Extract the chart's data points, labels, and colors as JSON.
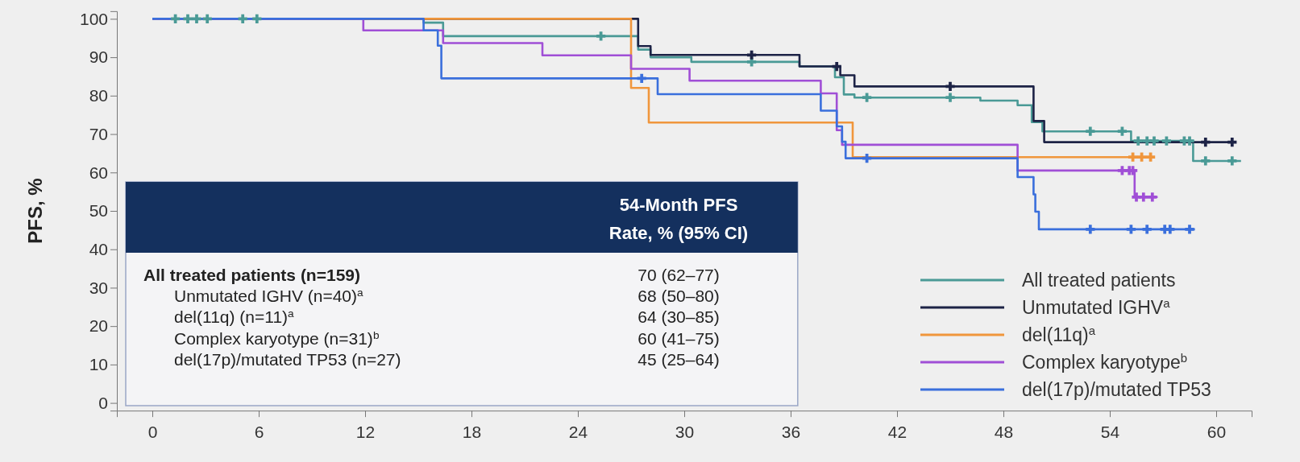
{
  "chart_data": {
    "type": "step",
    "ylabel": "PFS, %",
    "xlim": [
      -2,
      62
    ],
    "ylim": [
      -2,
      102
    ],
    "xticks": [
      0,
      6,
      12,
      18,
      24,
      30,
      36,
      42,
      48,
      54,
      60
    ],
    "yticks": [
      0,
      10,
      20,
      30,
      40,
      50,
      60,
      70,
      80,
      90,
      100
    ],
    "legend": "bottom right",
    "grid": false,
    "line_style": "solid",
    "series": [
      {
        "name": "All treated patients",
        "color": "#4a9a96",
        "x": [
          0,
          15.3,
          16.4,
          27.4,
          28.1,
          30.4,
          36.5,
          38.5,
          39.0,
          39.6,
          46.7,
          48.8,
          49.6,
          50.2,
          55.2,
          58.7,
          61.4
        ],
        "values": [
          100,
          99,
          95.5,
          92,
          90,
          88.8,
          87.6,
          84.8,
          80.3,
          79.5,
          78.7,
          77.5,
          73.1,
          70.7,
          68.2,
          63,
          63
        ]
      },
      {
        "name": "Unmutated IGHV$^{a}$",
        "color": "#1d2346",
        "x": [
          0,
          27.4,
          28.1,
          36.5,
          38.8,
          39.6,
          49.7,
          50.3,
          61.1
        ],
        "values": [
          100,
          92.9,
          90.6,
          87.6,
          85.3,
          82.4,
          73.4,
          67.9,
          67.9
        ]
      },
      {
        "name": "del(11q)$^{a}$",
        "color": "#f0963c",
        "x": [
          0,
          27.0,
          28.0,
          39.5,
          56.5
        ],
        "values": [
          100,
          82,
          73,
          64,
          64
        ]
      },
      {
        "name": "Complex karyotype$^{b}$",
        "color": "#a04fd6",
        "x": [
          0,
          11.9,
          16.4,
          22.0,
          27.0,
          30.3,
          37.7,
          38.6,
          38.9,
          48.8,
          55.4,
          56.7
        ],
        "values": [
          100,
          97,
          93.7,
          90.5,
          87,
          83.9,
          80.6,
          71,
          67.2,
          60.5,
          53.6,
          53.6
        ]
      },
      {
        "name": "del(17p)/mutated TP53",
        "color": "#3a6fdc",
        "x": [
          0,
          15.3,
          16.1,
          16.3,
          28.5,
          37.7,
          38.6,
          38.9,
          39.1,
          48.8,
          49.7,
          49.8,
          50.0,
          58.8
        ],
        "values": [
          100,
          97,
          93,
          84.5,
          80.4,
          76.1,
          72,
          68,
          63.7,
          58.8,
          54.3,
          49.8,
          45.2,
          45.2
        ]
      },
      {
        "type": "scatter",
        "marker": "cross",
        "color": "#4a9a96",
        "x": [
          1.3,
          2.0,
          2.5,
          3.1,
          5.1,
          5.9,
          25.3,
          33.8,
          40.3,
          45.0,
          52.9,
          54.7,
          55.6,
          56.1,
          56.5,
          57.2,
          58.2,
          58.5,
          59.4,
          60.9
        ],
        "values": [
          100,
          100,
          100,
          100,
          100,
          100,
          95.5,
          88.8,
          79.5,
          79.5,
          70.7,
          70.7,
          68.2,
          68.2,
          68.2,
          68.2,
          68.2,
          68.2,
          63,
          63
        ]
      },
      {
        "type": "scatter",
        "marker": "cross",
        "color": "#1d2346",
        "x": [
          33.8,
          38.6,
          45.0,
          59.4,
          60.9
        ],
        "values": [
          90.6,
          87.6,
          82.4,
          67.9,
          67.9
        ]
      },
      {
        "type": "scatter",
        "marker": "cross",
        "color": "#f0963c",
        "x": [
          55.3,
          55.8,
          56.3
        ],
        "values": [
          64,
          64,
          64
        ]
      },
      {
        "type": "scatter",
        "marker": "cross",
        "color": "#a04fd6",
        "x": [
          54.7,
          55.1,
          55.3,
          55.5,
          55.9,
          56.4
        ],
        "values": [
          60.5,
          60.5,
          60.5,
          53.6,
          53.6,
          53.6
        ]
      },
      {
        "type": "scatter",
        "marker": "cross",
        "color": "#3a6fdc",
        "x": [
          27.6,
          40.3,
          52.9,
          55.2,
          56.1,
          57.1,
          57.4,
          58.5
        ],
        "values": [
          84.5,
          63.7,
          45.2,
          45.2,
          45.2,
          45.2,
          45.2,
          45.2
        ]
      }
    ],
    "annotations": [
      "54-Month PFS Rate, % (95% CI)",
      "All treated patients (n=159)",
      "70 (62–77)",
      "Unmutated IGHV (n=40)$^{a}$",
      "68 (50–80)",
      "del(11q) (n=11)$^{a}$",
      "64 (30–85)",
      "Complex karyotype (n=31)$^{b}$",
      "60 (41–75)",
      "del(17p)/mutated TP53 (n=27)",
      "45 (25–64)"
    ]
  }
}
